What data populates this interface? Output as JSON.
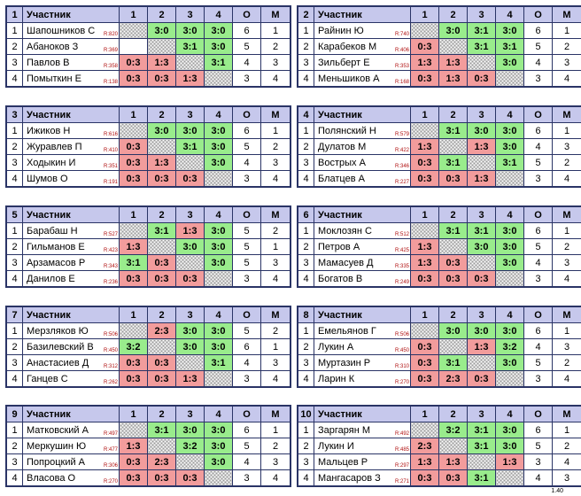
{
  "header": {
    "participant_col": "Участник",
    "cols": [
      "1",
      "2",
      "3",
      "4",
      "О",
      "М"
    ]
  },
  "groups": [
    {
      "id": "1",
      "players": [
        {
          "n": "1",
          "name": "Шапошников С",
          "rating": "R:820",
          "s": [
            "",
            "3:0",
            "3:0",
            "3:0"
          ],
          "o": "6",
          "m": "1"
        },
        {
          "n": "2",
          "name": "Абаноков З",
          "rating": "R:369",
          "s": [
            "",
            "",
            "3:1",
            "3:0"
          ],
          "o": "5",
          "m": "2"
        },
        {
          "n": "3",
          "name": "Павлов В",
          "rating": "R:358",
          "s": [
            "0:3",
            "1:3",
            "",
            "3:1"
          ],
          "o": "4",
          "m": "3"
        },
        {
          "n": "4",
          "name": "Помыткин Е",
          "rating": "R:138",
          "s": [
            "0:3",
            "0:3",
            "1:3",
            ""
          ],
          "o": "3",
          "m": "4"
        }
      ]
    },
    {
      "id": "2",
      "players": [
        {
          "n": "1",
          "name": "Райнин Ю",
          "rating": "R:740",
          "s": [
            "",
            "3:0",
            "3:1",
            "3:0"
          ],
          "o": "6",
          "m": "1"
        },
        {
          "n": "2",
          "name": "Карабеков М",
          "rating": "R:406",
          "s": [
            "0:3",
            "",
            "3:1",
            "3:1"
          ],
          "o": "5",
          "m": "2"
        },
        {
          "n": "3",
          "name": "Зильберт Е",
          "rating": "R:353",
          "s": [
            "1:3",
            "1:3",
            "",
            "3:0"
          ],
          "o": "4",
          "m": "3"
        },
        {
          "n": "4",
          "name": "Меньшиков А",
          "rating": "R:168",
          "s": [
            "0:3",
            "1:3",
            "0:3",
            ""
          ],
          "o": "3",
          "m": "4"
        }
      ]
    },
    {
      "id": "3",
      "players": [
        {
          "n": "1",
          "name": "Ижиков Н",
          "rating": "R:616",
          "s": [
            "",
            "3:0",
            "3:0",
            "3:0"
          ],
          "o": "6",
          "m": "1"
        },
        {
          "n": "2",
          "name": "Журавлев П",
          "rating": "R:410",
          "s": [
            "0:3",
            "",
            "3:1",
            "3:0"
          ],
          "o": "5",
          "m": "2"
        },
        {
          "n": "3",
          "name": "Ходыкин И",
          "rating": "R:351",
          "s": [
            "0:3",
            "1:3",
            "",
            "3:0"
          ],
          "o": "4",
          "m": "3"
        },
        {
          "n": "4",
          "name": "Шумов О",
          "rating": "R:191",
          "s": [
            "0:3",
            "0:3",
            "0:3",
            ""
          ],
          "o": "3",
          "m": "4"
        }
      ]
    },
    {
      "id": "4",
      "players": [
        {
          "n": "1",
          "name": "Полянский Н",
          "rating": "R:579",
          "s": [
            "",
            "3:1",
            "3:0",
            "3:0"
          ],
          "o": "6",
          "m": "1"
        },
        {
          "n": "2",
          "name": "Дулатов М",
          "rating": "R:422",
          "s": [
            "1:3",
            "",
            "1:3",
            "3:0"
          ],
          "o": "4",
          "m": "3"
        },
        {
          "n": "3",
          "name": "Вострых А",
          "rating": "R:346",
          "s": [
            "0:3",
            "3:1",
            "",
            "3:1"
          ],
          "o": "5",
          "m": "2"
        },
        {
          "n": "4",
          "name": "Блатцев А",
          "rating": "R:227",
          "s": [
            "0:3",
            "0:3",
            "1:3",
            ""
          ],
          "o": "3",
          "m": "4"
        }
      ]
    },
    {
      "id": "5",
      "players": [
        {
          "n": "1",
          "name": "Барабаш Н",
          "rating": "R:527",
          "s": [
            "",
            "3:1",
            "1:3",
            "3:0"
          ],
          "o": "5",
          "m": "2"
        },
        {
          "n": "2",
          "name": "Гильманов Е",
          "rating": "R:423",
          "s": [
            "1:3",
            "",
            "3:0",
            "3:0"
          ],
          "o": "5",
          "m": "1"
        },
        {
          "n": "3",
          "name": "Арзамасов Р",
          "rating": "R:343",
          "s": [
            "3:1",
            "0:3",
            "",
            "3:0"
          ],
          "o": "5",
          "m": "3"
        },
        {
          "n": "4",
          "name": "Данилов Е",
          "rating": "R:236",
          "s": [
            "0:3",
            "0:3",
            "0:3",
            ""
          ],
          "o": "3",
          "m": "4"
        }
      ]
    },
    {
      "id": "6",
      "players": [
        {
          "n": "1",
          "name": "Моклозян С",
          "rating": "R:512",
          "s": [
            "",
            "3:1",
            "3:1",
            "3:0"
          ],
          "o": "6",
          "m": "1"
        },
        {
          "n": "2",
          "name": "Петров А",
          "rating": "R:425",
          "s": [
            "1:3",
            "",
            "3:0",
            "3:0"
          ],
          "o": "5",
          "m": "2"
        },
        {
          "n": "3",
          "name": "Мамасуев Д",
          "rating": "R:335",
          "s": [
            "1:3",
            "0:3",
            "",
            "3:0"
          ],
          "o": "4",
          "m": "3"
        },
        {
          "n": "4",
          "name": "Богатов В",
          "rating": "R:249",
          "s": [
            "0:3",
            "0:3",
            "0:3",
            ""
          ],
          "o": "3",
          "m": "4"
        }
      ]
    },
    {
      "id": "7",
      "players": [
        {
          "n": "1",
          "name": "Мерзляков Ю",
          "rating": "R:506",
          "s": [
            "",
            "2:3",
            "3:0",
            "3:0"
          ],
          "o": "5",
          "m": "2"
        },
        {
          "n": "2",
          "name": "Базилевский В",
          "rating": "R:450",
          "s": [
            "3:2",
            "",
            "3:0",
            "3:0"
          ],
          "o": "6",
          "m": "1"
        },
        {
          "n": "3",
          "name": "Анастасиев Д",
          "rating": "R:312",
          "s": [
            "0:3",
            "0:3",
            "",
            "3:1"
          ],
          "o": "4",
          "m": "3"
        },
        {
          "n": "4",
          "name": "Ганцев С",
          "rating": "R:262",
          "s": [
            "0:3",
            "0:3",
            "1:3",
            ""
          ],
          "o": "3",
          "m": "4"
        }
      ]
    },
    {
      "id": "8",
      "players": [
        {
          "n": "1",
          "name": "Емельянов Г",
          "rating": "R:506",
          "s": [
            "",
            "3:0",
            "3:0",
            "3:0"
          ],
          "o": "6",
          "m": "1"
        },
        {
          "n": "2",
          "name": "Лукин А",
          "rating": "R:450",
          "s": [
            "0:3",
            "",
            "1:3",
            "3:2"
          ],
          "o": "4",
          "m": "3"
        },
        {
          "n": "3",
          "name": "Муртазин Р",
          "rating": "R:310",
          "s": [
            "0:3",
            "3:1",
            "",
            "3:0"
          ],
          "o": "5",
          "m": "2"
        },
        {
          "n": "4",
          "name": "Ларин К",
          "rating": "R:270",
          "s": [
            "0:3",
            "2:3",
            "0:3",
            ""
          ],
          "o": "3",
          "m": "4"
        }
      ]
    },
    {
      "id": "9",
      "players": [
        {
          "n": "1",
          "name": "Матковский А",
          "rating": "R:497",
          "s": [
            "",
            "3:1",
            "3:0",
            "3:0"
          ],
          "o": "6",
          "m": "1"
        },
        {
          "n": "2",
          "name": "Меркушин Ю",
          "rating": "R:477",
          "s": [
            "1:3",
            "",
            "3:2",
            "3:0"
          ],
          "o": "5",
          "m": "2"
        },
        {
          "n": "3",
          "name": "Попроцкий А",
          "rating": "R:306",
          "s": [
            "0:3",
            "2:3",
            "",
            "3:0"
          ],
          "o": "4",
          "m": "3"
        },
        {
          "n": "4",
          "name": "Власова О",
          "rating": "R:270",
          "s": [
            "0:3",
            "0:3",
            "0:3",
            ""
          ],
          "o": "3",
          "m": "4"
        }
      ]
    },
    {
      "id": "10",
      "players": [
        {
          "n": "1",
          "name": "Заргарян М",
          "rating": "R:492",
          "s": [
            "",
            "3:2",
            "3:1",
            "3:0"
          ],
          "o": "6",
          "m": "1"
        },
        {
          "n": "2",
          "name": "Лукин И",
          "rating": "R:485",
          "s": [
            "2:3",
            "",
            "3:1",
            "3:0"
          ],
          "o": "5",
          "m": "2"
        },
        {
          "n": "3",
          "name": "Мальцев Р",
          "rating": "R:297",
          "s": [
            "1:3",
            "1:3",
            "",
            "1:3"
          ],
          "o": "3",
          "m": "4"
        },
        {
          "n": "4",
          "name": "Мангасаров З",
          "rating": "R:271",
          "s": [
            "0:3",
            "0:3",
            "3:1",
            ""
          ],
          "o": "4",
          "m": "3"
        }
      ]
    }
  ],
  "footer": "1.40"
}
